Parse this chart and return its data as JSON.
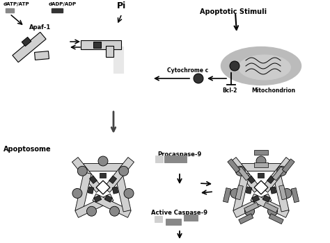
{
  "bg_color": "#ffffff",
  "lc": "#000000",
  "lgray": "#d0d0d0",
  "mgray": "#888888",
  "dgray": "#333333",
  "cgray": "#aaaaaa",
  "labels": {
    "dATP_ATP": "dATP/ATP",
    "dADP_ADP": "dADP/ADP",
    "Pi": "Pi",
    "Apaf1": "Apaf-1",
    "apoptotic": "Apoptotic Stimuli",
    "cytochrome": "Cytochrome c",
    "bcl2": "Bcl-2",
    "mito": "Mitochondrion",
    "apoptosome": "Apoptosome",
    "procaspase": "Procaspase-9",
    "active_casp": "Active Caspase-9"
  }
}
